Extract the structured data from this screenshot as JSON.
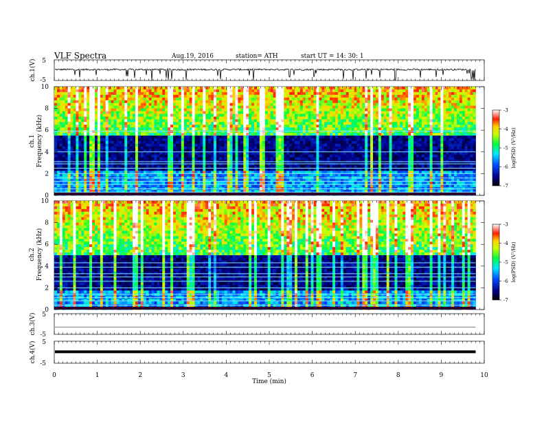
{
  "header": {
    "title": "VLF  Spectra",
    "date": "Aug.19, 2016",
    "station": "station= ATH",
    "start": "start  UT  =    14: 30: 1"
  },
  "chart_data": [
    {
      "type": "line",
      "panel": "ch1-waveform",
      "ylabel": "ch.1(V)",
      "ylim": [
        -5,
        5
      ],
      "yticks": [
        "5",
        "-5"
      ],
      "description_values": {
        "baseline_v": 0.3,
        "typical_noise_v": 0.4,
        "max_spike_v": -5
      }
    },
    {
      "type": "heatmap",
      "panel": "ch1-spectrogram",
      "ylabel_channel": "ch.1",
      "ylabel": "Frequency  (kHz)",
      "ylim": [
        0,
        10
      ],
      "yticks": [
        "0",
        "2",
        "4",
        "6",
        "8",
        "10"
      ],
      "xlim": [
        0,
        10
      ],
      "colorbar": {
        "label": "log(PSD) (V²/Hz)",
        "range": [
          -7,
          -3
        ],
        "ticks": [
          "-3",
          "-4",
          "-5",
          "-6",
          "-7"
        ]
      },
      "bands_khz": [
        0.3,
        0.6,
        1.0,
        1.3,
        1.6,
        2.0,
        2.5,
        2.9,
        3.1,
        4.0,
        5.9
      ]
    },
    {
      "type": "heatmap",
      "panel": "ch2-spectrogram",
      "ylabel_channel": "ch.2",
      "ylabel": "Frequency  (kHz)",
      "ylim": [
        0,
        10
      ],
      "yticks": [
        "0",
        "2",
        "4",
        "6",
        "8",
        "10"
      ],
      "xlim": [
        0,
        10
      ],
      "colorbar": {
        "label": "log(PSD) (V²/Hz)",
        "range": [
          -7,
          -3
        ],
        "ticks": [
          "-3",
          "-4",
          "-5",
          "-6",
          "-7"
        ]
      },
      "bands_khz": [
        0.4,
        0.8,
        1.1,
        1.4,
        2.0,
        2.6,
        3.0,
        3.3,
        3.9,
        4.3
      ]
    },
    {
      "type": "line",
      "panel": "ch3-waveform",
      "ylabel": "ch.3(V)",
      "ylim": [
        -5,
        5
      ],
      "yticks": [
        "5",
        "-5"
      ],
      "description_values": {
        "baseline_v": -1.5
      }
    },
    {
      "type": "line",
      "panel": "ch4-waveform",
      "ylabel": "ch.4(V)",
      "ylim": [
        -5,
        5
      ],
      "yticks": [
        "5",
        "-5"
      ],
      "description_values": {
        "baseline_v": 0.2
      }
    }
  ],
  "xaxis": {
    "label": "Time  (min)",
    "range": [
      0,
      10
    ],
    "data_end": 9.8,
    "ticks": [
      "0",
      "1",
      "2",
      "3",
      "4",
      "5",
      "6",
      "7",
      "8",
      "9",
      "10"
    ]
  }
}
